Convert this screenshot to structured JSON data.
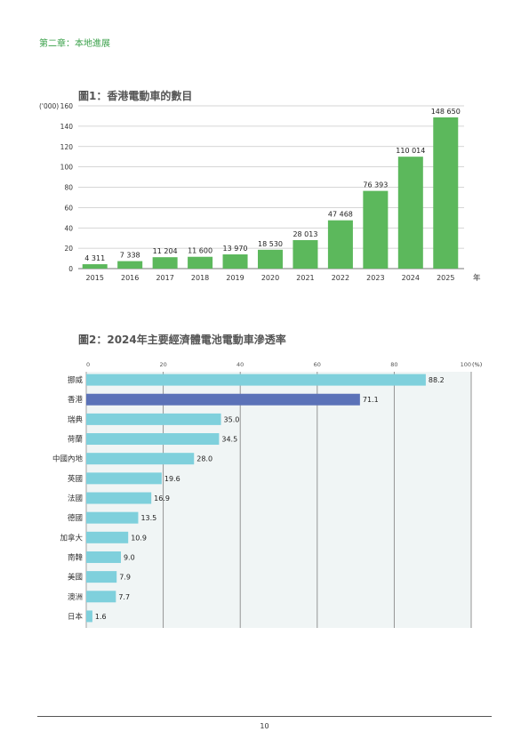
{
  "header": {
    "chapter": "第二章：本地進展"
  },
  "figure1": {
    "title": "圖1：香港電動車的數目"
  },
  "figure2": {
    "title": "圖2：2024年主要經濟體電池電動車滲透率"
  },
  "footer": {
    "page_number": "10"
  },
  "chart_data": [
    {
      "type": "bar",
      "orientation": "vertical",
      "title": "圖1：香港電動車的數目",
      "ylabel": "('000)",
      "xlabel": "年",
      "categories": [
        "2015",
        "2016",
        "2017",
        "2018",
        "2019",
        "2020",
        "2021",
        "2022",
        "2023",
        "2024",
        "2025"
      ],
      "values": [
        4.311,
        7.338,
        11.204,
        11.6,
        13.97,
        18.53,
        28.013,
        47.468,
        76.393,
        110.014,
        148.65
      ],
      "data_labels": [
        "4 311",
        "7 338",
        "11 204",
        "11 600",
        "13 970",
        "18 530",
        "28 013",
        "47 468",
        "76 393",
        "110 014",
        "148 650"
      ],
      "ylim": [
        0,
        160
      ],
      "yticks": [
        "0",
        "20",
        "40",
        "60",
        "80",
        "100",
        "120",
        "140",
        "160"
      ],
      "grid": true,
      "colors": {
        "bar": "#5cb85c"
      }
    },
    {
      "type": "bar",
      "orientation": "horizontal",
      "title": "圖2：2024年主要經濟體電池電動車滲透率",
      "xlabel": "(%)",
      "categories": [
        "挪威",
        "香港",
        "瑞典",
        "荷蘭",
        "中國內地",
        "英國",
        "法國",
        "德國",
        "加拿大",
        "南韓",
        "美國",
        "澳洲",
        "日本"
      ],
      "values": [
        88.2,
        71.1,
        35.0,
        34.5,
        28.0,
        19.6,
        16.9,
        13.5,
        10.9,
        9.0,
        7.9,
        7.7,
        1.6
      ],
      "data_labels": [
        "88.2",
        "71.1",
        "35.0",
        "34.5",
        "28.0",
        "19.6",
        "16.9",
        "13.5",
        "10.9",
        "9.0",
        "7.9",
        "7.7",
        "1.6"
      ],
      "xlim": [
        0,
        100
      ],
      "xticks": [
        "0",
        "20",
        "40",
        "60",
        "80",
        "100"
      ],
      "grid": true,
      "highlight": "香港",
      "colors": {
        "bar": "#7fd0dc",
        "highlight": "#5b72b8",
        "plot_bg": "#f0f5f5"
      }
    }
  ]
}
